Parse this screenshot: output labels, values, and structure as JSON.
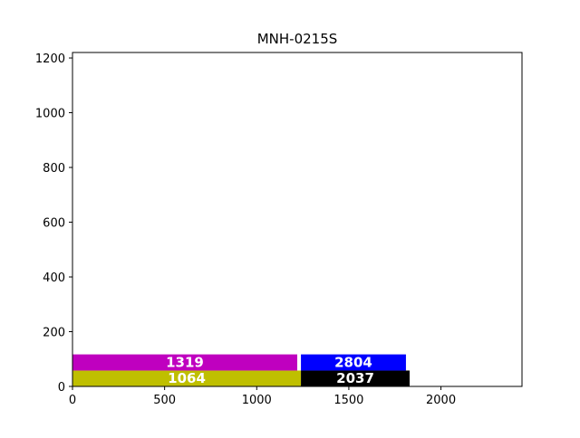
{
  "chart_data": {
    "type": "bar",
    "orientation": "horizontal-stacked",
    "title": "MNH-0215S",
    "xlabel": "",
    "ylabel": "",
    "xlim": [
      0,
      2440
    ],
    "ylim": [
      0,
      1220
    ],
    "xticks": [
      "0",
      "500",
      "1000",
      "1500",
      "2000"
    ],
    "yticks": [
      "0",
      "200",
      "400",
      "600",
      "800",
      "1000",
      "1200"
    ],
    "grid": false,
    "legend": "none",
    "bars": [
      {
        "label": "1064",
        "x_start": 0,
        "x_end": 1240,
        "y_start": 0,
        "y_end": 58,
        "color": "#bfbf00"
      },
      {
        "label": "2037",
        "x_start": 1240,
        "x_end": 1830,
        "y_start": 0,
        "y_end": 58,
        "color": "#000000"
      },
      {
        "label": "1319",
        "x_start": 0,
        "x_end": 1220,
        "y_start": 58,
        "y_end": 117,
        "color": "#bf00bf"
      },
      {
        "label": "2804",
        "x_start": 1240,
        "x_end": 1810,
        "y_start": 58,
        "y_end": 117,
        "color": "#0000ff"
      }
    ]
  }
}
